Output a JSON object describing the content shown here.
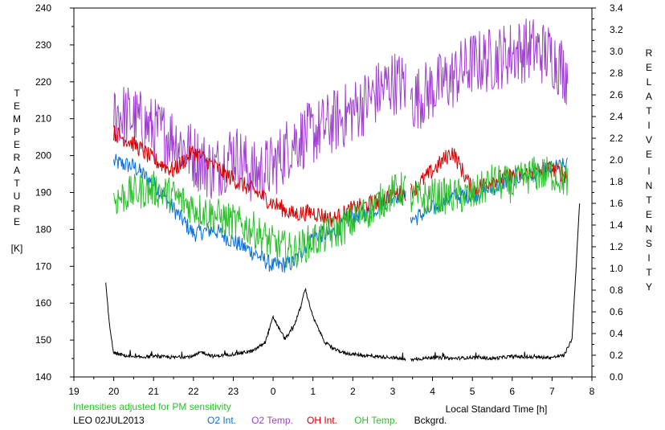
{
  "chart_data": {
    "type": "line",
    "title": "",
    "xlabel": "Local Standard Time [h]",
    "ylabel_left": "TEMPERATURE",
    "ylabel_left_unit": "[K]",
    "ylabel_right": "RELATIVE INTENSITY",
    "xlim": [
      19,
      8
    ],
    "ylim_left": [
      140,
      240
    ],
    "ylim_right": [
      0.0,
      3.4
    ],
    "x_ticks": [
      "19",
      "20",
      "21",
      "22",
      "23",
      "0",
      "1",
      "2",
      "3",
      "4",
      "5",
      "6",
      "7",
      "8"
    ],
    "y_ticks_left": [
      "140",
      "150",
      "160",
      "170",
      "180",
      "190",
      "200",
      "210",
      "220",
      "230",
      "240"
    ],
    "y_ticks_right": [
      "0.0",
      "0.2",
      "0.4",
      "0.6",
      "0.8",
      "1.0",
      "1.2",
      "1.4",
      "1.6",
      "1.8",
      "2.0",
      "2.2",
      "2.4",
      "2.6",
      "2.8",
      "3.0",
      "3.2",
      "3.4"
    ],
    "note": "Intensities adjusted for PM sensitivity",
    "station_date": "LEO 02JUL2013",
    "grid": false,
    "series": [
      {
        "name": "O2 Int.",
        "axis": "right",
        "color": "#0a6fd6",
        "x": [
          20.0,
          20.5,
          21.0,
          21.5,
          22.0,
          22.5,
          23.0,
          23.5,
          24.0,
          24.5,
          25.0,
          25.5,
          26.0,
          26.5,
          27.0,
          27.3,
          27.5,
          28.0,
          28.5,
          29.0,
          29.5,
          30.0,
          30.5,
          31.0,
          31.4
        ],
        "y": [
          1.98,
          1.94,
          1.78,
          1.55,
          1.32,
          1.36,
          1.25,
          1.15,
          1.02,
          1.05,
          1.3,
          1.33,
          1.48,
          1.53,
          1.68,
          1.67,
          1.45,
          1.55,
          1.66,
          1.68,
          1.74,
          1.83,
          1.87,
          1.92,
          1.95
        ]
      },
      {
        "name": "O2 Temp.",
        "axis": "left",
        "color": "#a040d0",
        "x": [
          20.0,
          20.5,
          21.0,
          21.5,
          22.0,
          22.5,
          23.0,
          23.5,
          24.0,
          24.5,
          25.0,
          25.5,
          26.0,
          26.5,
          27.0,
          27.3,
          27.5,
          28.0,
          28.5,
          29.0,
          29.5,
          30.0,
          30.5,
          31.0,
          31.4
        ],
        "y": [
          212,
          210,
          207,
          205,
          200,
          196,
          201,
          195,
          197,
          204,
          206,
          209,
          212,
          216,
          220,
          219,
          215,
          218,
          221,
          225,
          226,
          228,
          229,
          227,
          222
        ]
      },
      {
        "name": "OH Int.",
        "axis": "right",
        "color": "#d40000",
        "x": [
          20.0,
          20.5,
          21.0,
          21.5,
          22.0,
          22.5,
          23.0,
          23.5,
          24.0,
          24.5,
          25.0,
          25.5,
          26.0,
          26.5,
          27.0,
          27.3,
          27.5,
          28.0,
          28.5,
          29.0,
          29.5,
          30.0,
          30.5,
          31.0,
          31.4
        ],
        "y": [
          2.25,
          2.15,
          2.0,
          1.9,
          2.08,
          1.95,
          1.82,
          1.72,
          1.6,
          1.5,
          1.52,
          1.45,
          1.55,
          1.6,
          1.68,
          1.7,
          1.72,
          1.9,
          2.08,
          1.72,
          1.82,
          1.85,
          1.88,
          1.92,
          1.85
        ]
      },
      {
        "name": "OH Temp.",
        "axis": "left",
        "color": "#2cc02c",
        "x": [
          20.0,
          20.5,
          21.0,
          21.5,
          22.0,
          22.5,
          23.0,
          23.5,
          24.0,
          24.5,
          25.0,
          25.5,
          26.0,
          26.5,
          27.0,
          27.3,
          27.5,
          28.0,
          28.5,
          29.0,
          29.5,
          30.0,
          30.5,
          31.0,
          31.4
        ],
        "y": [
          188,
          190,
          191,
          189,
          186,
          184,
          182,
          180,
          176,
          174,
          177,
          179,
          182,
          186,
          190,
          191,
          188,
          189,
          189,
          189,
          193,
          192,
          195,
          195,
          193
        ]
      },
      {
        "name": "Bckgrd.",
        "axis": "right",
        "color": "#000000",
        "x": [
          19.8,
          19.9,
          20.0,
          20.5,
          21.0,
          21.5,
          22.0,
          22.2,
          22.5,
          23.0,
          23.5,
          23.8,
          24.0,
          24.3,
          24.5,
          24.7,
          24.8,
          25.0,
          25.3,
          25.5,
          25.8,
          26.0,
          26.5,
          27.0,
          27.3,
          27.5,
          28.0,
          28.5,
          29.0,
          29.5,
          30.0,
          30.5,
          31.0,
          31.3,
          31.5,
          31.7
        ],
        "y": [
          0.86,
          0.45,
          0.22,
          0.18,
          0.19,
          0.18,
          0.19,
          0.23,
          0.19,
          0.21,
          0.24,
          0.32,
          0.55,
          0.35,
          0.45,
          0.65,
          0.82,
          0.55,
          0.32,
          0.26,
          0.22,
          0.21,
          0.19,
          0.18,
          0.16,
          0.16,
          0.18,
          0.17,
          0.18,
          0.17,
          0.19,
          0.18,
          0.18,
          0.2,
          0.35,
          1.65
        ]
      }
    ]
  }
}
